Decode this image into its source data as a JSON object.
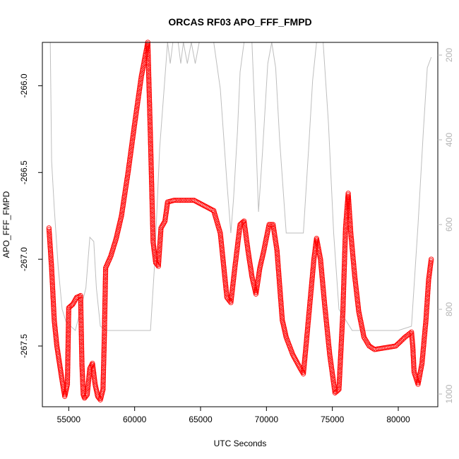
{
  "chart_data": {
    "type": "scatter",
    "title": "ORCAS RF03 APO_FFF_FMPD",
    "xlabel": "UTC Seconds",
    "ylabel": "APO_FFF_FMPD",
    "xlim": [
      53000,
      83000
    ],
    "ylim": [
      -267.85,
      -265.75
    ],
    "x_ticks": [
      55000,
      60000,
      65000,
      70000,
      75000,
      80000
    ],
    "x_tick_labels": [
      "55000",
      "60000",
      "65000",
      "70000",
      "75000",
      "80000"
    ],
    "y_ticks": [
      -266.0,
      -266.5,
      -267.0,
      -267.5
    ],
    "y_tick_labels": [
      "-266.0",
      "-266.5",
      "-267.0",
      "-267.5"
    ],
    "y2_lim": [
      1030,
      170
    ],
    "y2_ticks": [
      200,
      400,
      600,
      800,
      1000
    ],
    "y2_tick_labels": [
      "200",
      "400",
      "600",
      "800",
      "1000"
    ],
    "colors": {
      "points": "#ff0000",
      "secondary_line": "#bebebe",
      "axis": "#000000",
      "right_axis": "#b4b4b4"
    },
    "series": [
      {
        "marker": "open-circle",
        "color": "#ff0000",
        "points": [
          [
            53500,
            -266.82
          ],
          [
            53700,
            -267.05
          ],
          [
            53900,
            -267.35
          ],
          [
            54100,
            -267.5
          ],
          [
            54300,
            -267.6
          ],
          [
            54500,
            -267.7
          ],
          [
            54700,
            -267.79
          ],
          [
            54900,
            -267.72
          ],
          [
            55000,
            -267.28
          ],
          [
            55300,
            -267.26
          ],
          [
            55600,
            -267.22
          ],
          [
            55900,
            -267.21
          ],
          [
            56000,
            -267.6
          ],
          [
            56100,
            -267.78
          ],
          [
            56200,
            -267.8
          ],
          [
            56400,
            -267.78
          ],
          [
            56600,
            -267.63
          ],
          [
            56800,
            -267.6
          ],
          [
            57000,
            -267.72
          ],
          [
            57200,
            -267.79
          ],
          [
            57400,
            -267.81
          ],
          [
            57600,
            -267.75
          ],
          [
            57700,
            -267.45
          ],
          [
            57800,
            -267.05
          ],
          [
            58200,
            -266.98
          ],
          [
            58600,
            -266.88
          ],
          [
            59000,
            -266.75
          ],
          [
            59500,
            -266.5
          ],
          [
            60000,
            -266.22
          ],
          [
            60500,
            -265.95
          ],
          [
            61000,
            -265.75
          ],
          [
            61200,
            -266.3
          ],
          [
            61400,
            -266.9
          ],
          [
            61600,
            -267.02
          ],
          [
            61800,
            -267.04
          ],
          [
            62000,
            -266.82
          ],
          [
            62300,
            -266.78
          ],
          [
            62500,
            -266.67
          ],
          [
            63000,
            -266.66
          ],
          [
            63500,
            -266.66
          ],
          [
            64000,
            -266.66
          ],
          [
            64500,
            -266.66
          ],
          [
            65000,
            -266.68
          ],
          [
            65500,
            -266.7
          ],
          [
            66000,
            -266.72
          ],
          [
            66500,
            -266.85
          ],
          [
            67000,
            -267.22
          ],
          [
            67300,
            -267.25
          ],
          [
            67600,
            -267.05
          ],
          [
            68000,
            -266.8
          ],
          [
            68300,
            -266.78
          ],
          [
            68600,
            -266.95
          ],
          [
            68900,
            -267.1
          ],
          [
            69200,
            -267.2
          ],
          [
            69500,
            -267.05
          ],
          [
            69800,
            -266.95
          ],
          [
            70200,
            -266.8
          ],
          [
            70500,
            -266.8
          ],
          [
            70800,
            -266.95
          ],
          [
            71200,
            -267.35
          ],
          [
            71500,
            -267.45
          ],
          [
            72000,
            -267.55
          ],
          [
            72500,
            -267.62
          ],
          [
            72800,
            -267.66
          ],
          [
            73000,
            -267.5
          ],
          [
            73300,
            -267.25
          ],
          [
            73600,
            -267.0
          ],
          [
            73800,
            -266.88
          ],
          [
            74100,
            -267.0
          ],
          [
            74400,
            -267.25
          ],
          [
            74800,
            -267.55
          ],
          [
            75200,
            -267.77
          ],
          [
            75500,
            -267.75
          ],
          [
            75800,
            -267.3
          ],
          [
            76000,
            -266.82
          ],
          [
            76200,
            -266.62
          ],
          [
            76400,
            -266.85
          ],
          [
            76700,
            -267.1
          ],
          [
            77000,
            -267.3
          ],
          [
            77400,
            -267.45
          ],
          [
            77800,
            -267.5
          ],
          [
            78200,
            -267.52
          ],
          [
            79000,
            -267.51
          ],
          [
            79800,
            -267.5
          ],
          [
            80500,
            -267.45
          ],
          [
            81000,
            -267.42
          ],
          [
            81100,
            -267.5
          ],
          [
            81200,
            -267.65
          ],
          [
            81500,
            -267.72
          ],
          [
            81800,
            -267.6
          ],
          [
            82100,
            -267.35
          ],
          [
            82300,
            -267.12
          ],
          [
            82500,
            -267.0
          ]
        ]
      },
      {
        "axis": "right",
        "color": "#bebebe",
        "line": true,
        "points": [
          [
            53600,
            170
          ],
          [
            53700,
            450
          ],
          [
            53900,
            560
          ],
          [
            54200,
            700
          ],
          [
            54500,
            800
          ],
          [
            54800,
            830
          ],
          [
            55500,
            850
          ],
          [
            56300,
            750
          ],
          [
            56600,
            630
          ],
          [
            56900,
            640
          ],
          [
            57100,
            750
          ],
          [
            57400,
            840
          ],
          [
            57900,
            850
          ],
          [
            59000,
            850
          ],
          [
            60000,
            850
          ],
          [
            61200,
            850
          ],
          [
            61500,
            700
          ],
          [
            61900,
            420
          ],
          [
            62500,
            170
          ],
          [
            62700,
            220
          ],
          [
            62900,
            170
          ],
          [
            63300,
            170
          ],
          [
            63500,
            220
          ],
          [
            63700,
            170
          ],
          [
            64000,
            220
          ],
          [
            64300,
            170
          ],
          [
            64600,
            220
          ],
          [
            64900,
            170
          ],
          [
            65500,
            170
          ],
          [
            66000,
            170
          ],
          [
            66500,
            280
          ],
          [
            67000,
            500
          ],
          [
            67300,
            620
          ],
          [
            67500,
            540
          ],
          [
            67800,
            380
          ],
          [
            68000,
            240
          ],
          [
            68300,
            170
          ],
          [
            68900,
            170
          ],
          [
            69200,
            400
          ],
          [
            69400,
            570
          ],
          [
            69700,
            430
          ],
          [
            70100,
            220
          ],
          [
            70400,
            170
          ],
          [
            70700,
            230
          ],
          [
            71000,
            400
          ],
          [
            71500,
            620
          ],
          [
            72200,
            620
          ],
          [
            72800,
            620
          ],
          [
            73200,
            420
          ],
          [
            73500,
            260
          ],
          [
            73800,
            170
          ],
          [
            74300,
            170
          ],
          [
            74700,
            360
          ],
          [
            75100,
            620
          ],
          [
            75500,
            800
          ],
          [
            76500,
            850
          ],
          [
            80000,
            850
          ],
          [
            81000,
            840
          ],
          [
            81500,
            600
          ],
          [
            81900,
            380
          ],
          [
            82200,
            230
          ],
          [
            82500,
            205
          ]
        ]
      }
    ]
  }
}
